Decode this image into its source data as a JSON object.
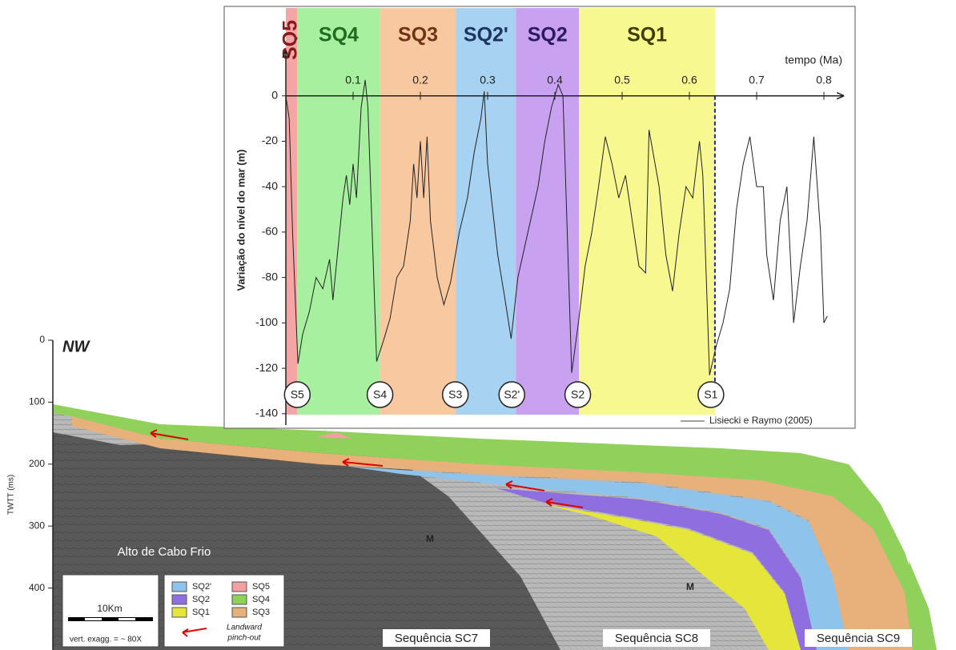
{
  "chart_data": [
    {
      "type": "line",
      "x_label": "tempo (Ma)",
      "y_label": "Variação do nível do mar (m)",
      "xlim": [
        0,
        0.83
      ],
      "ylim": [
        -145,
        20
      ],
      "xticks": [
        0.1,
        0.2,
        0.3,
        0.4,
        0.5,
        0.6,
        0.7,
        0.8
      ],
      "yticks": [
        0,
        -20,
        -40,
        -60,
        -80,
        -100,
        -120,
        -140
      ],
      "x": [
        0,
        0.005,
        0.01,
        0.018,
        0.025,
        0.035,
        0.045,
        0.055,
        0.065,
        0.07,
        0.08,
        0.085,
        0.09,
        0.095,
        0.1,
        0.105,
        0.112,
        0.118,
        0.122,
        0.135,
        0.145,
        0.155,
        0.165,
        0.175,
        0.185,
        0.19,
        0.195,
        0.2,
        0.205,
        0.21,
        0.215,
        0.225,
        0.235,
        0.245,
        0.258,
        0.27,
        0.28,
        0.29,
        0.295,
        0.3,
        0.315,
        0.325,
        0.335,
        0.345,
        0.36,
        0.375,
        0.385,
        0.395,
        0.405,
        0.412,
        0.425,
        0.435,
        0.445,
        0.455,
        0.465,
        0.475,
        0.485,
        0.495,
        0.505,
        0.515,
        0.525,
        0.535,
        0.54,
        0.555,
        0.565,
        0.575,
        0.585,
        0.595,
        0.605,
        0.615,
        0.62,
        0.63,
        0.64,
        0.65,
        0.66,
        0.67,
        0.68,
        0.69,
        0.7,
        0.71,
        0.715,
        0.725,
        0.735,
        0.745,
        0.755,
        0.765,
        0.775,
        0.785,
        0.795,
        0.8,
        0.805
      ],
      "series": [
        {
          "name": "Lisiecki e Raymo (2005)",
          "color": "#222222",
          "values": [
            0,
            -10,
            -60,
            -118,
            -105,
            -95,
            -80,
            -85,
            -72,
            -90,
            -60,
            -45,
            -35,
            -48,
            -30,
            -45,
            -5,
            7,
            -5,
            -117,
            -108,
            -98,
            -80,
            -75,
            -55,
            -30,
            -45,
            -20,
            -45,
            -18,
            -55,
            -80,
            -92,
            -82,
            -60,
            -45,
            -25,
            -10,
            2,
            -30,
            -70,
            -88,
            -107,
            -80,
            -60,
            -40,
            -20,
            -5,
            5,
            0,
            -122,
            -100,
            -75,
            -60,
            -40,
            -18,
            -30,
            -45,
            -35,
            -55,
            -75,
            -78,
            -15,
            -40,
            -70,
            -86,
            -60,
            -40,
            -45,
            -20,
            -35,
            -123,
            -110,
            -100,
            -85,
            -50,
            -30,
            -18,
            -40,
            -40,
            -70,
            -90,
            -55,
            -40,
            -100,
            -75,
            -55,
            -18,
            -60,
            -100,
            -97
          ]
        }
      ],
      "sequences": [
        {
          "name": "SQ5",
          "start": 0,
          "end": 0.017,
          "color": "#f4a6a6",
          "label_color": "#8b1a1a"
        },
        {
          "name": "SQ4",
          "start": 0.017,
          "end": 0.14,
          "color": "#a6f0a0",
          "label_color": "#1f6b1f"
        },
        {
          "name": "SQ3",
          "start": 0.14,
          "end": 0.253,
          "color": "#f8c8a0",
          "label_color": "#6e3418"
        },
        {
          "name": "SQ2'",
          "start": 0.253,
          "end": 0.342,
          "color": "#a8d2f2",
          "label_color": "#1c355f"
        },
        {
          "name": "SQ2",
          "start": 0.342,
          "end": 0.436,
          "color": "#c8a2f0",
          "label_color": "#2e1a5e"
        },
        {
          "name": "SQ1",
          "start": 0.436,
          "end": 0.638,
          "color": "#f8f890",
          "label_color": "#3d3d00"
        }
      ],
      "boundaries": [
        {
          "label": "S5",
          "value": 0.017
        },
        {
          "label": "S4",
          "value": 0.14
        },
        {
          "label": "S3",
          "value": 0.252
        },
        {
          "label": "S2'",
          "value": 0.336
        },
        {
          "label": "S2",
          "value": 0.434
        },
        {
          "label": "S1",
          "value": 0.632
        }
      ]
    },
    {
      "type": "section",
      "title": "NW",
      "y_label": "TWTT (ms)",
      "ylim": [
        0,
        500
      ],
      "yticks": [
        0,
        100,
        200,
        300,
        400
      ],
      "legend": [
        {
          "name": "SQ2'",
          "color": "#8ec4ec"
        },
        {
          "name": "SQ2",
          "color": "#8f6fe0"
        },
        {
          "name": "SQ1",
          "color": "#e6e63a"
        },
        {
          "name": "SQ5",
          "color": "#f2a0a0"
        },
        {
          "name": "SQ4",
          "color": "#8fd15a"
        },
        {
          "name": "SQ3",
          "color": "#e8b07a"
        }
      ],
      "pinch_label": [
        "Landward",
        "pinch-out"
      ],
      "scale_label": "10Km",
      "exagg_label": "vert. exagg. = ~ 80X",
      "annotations": [
        "Alto de Cabo Frio",
        "M",
        "M",
        "Sequência SC7",
        "Sequência SC8",
        "Sequência SC9"
      ]
    }
  ]
}
